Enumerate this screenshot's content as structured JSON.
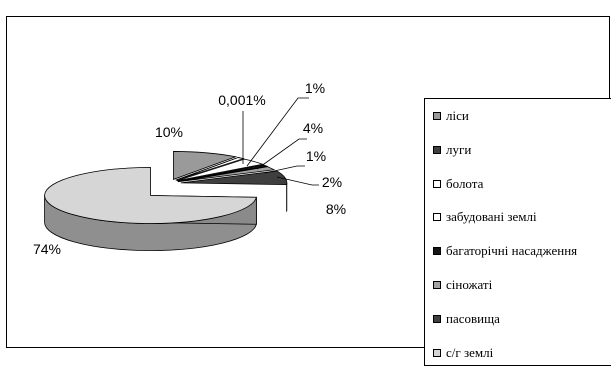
{
  "chart_data": {
    "type": "pie",
    "style": "3d-exploded",
    "categories": [
      "ліси",
      "луги",
      "болота",
      "забудовані землі",
      "багаторічні насадження",
      "сіножаті",
      "пасовища",
      "с/г землі"
    ],
    "values": [
      10,
      0.001,
      1,
      4,
      1,
      2,
      8,
      74
    ],
    "labels": [
      "10%",
      "0,001%",
      "1%",
      "4%",
      "1%",
      "2%",
      "8%",
      "74%"
    ],
    "colors": [
      "#9a9a9a",
      "#3f3f3f",
      "#ffffff",
      "#ffffff",
      "#151515",
      "#a3a3a3",
      "#3f3f3f",
      "#d6d6d6"
    ],
    "legend_position": "right"
  }
}
